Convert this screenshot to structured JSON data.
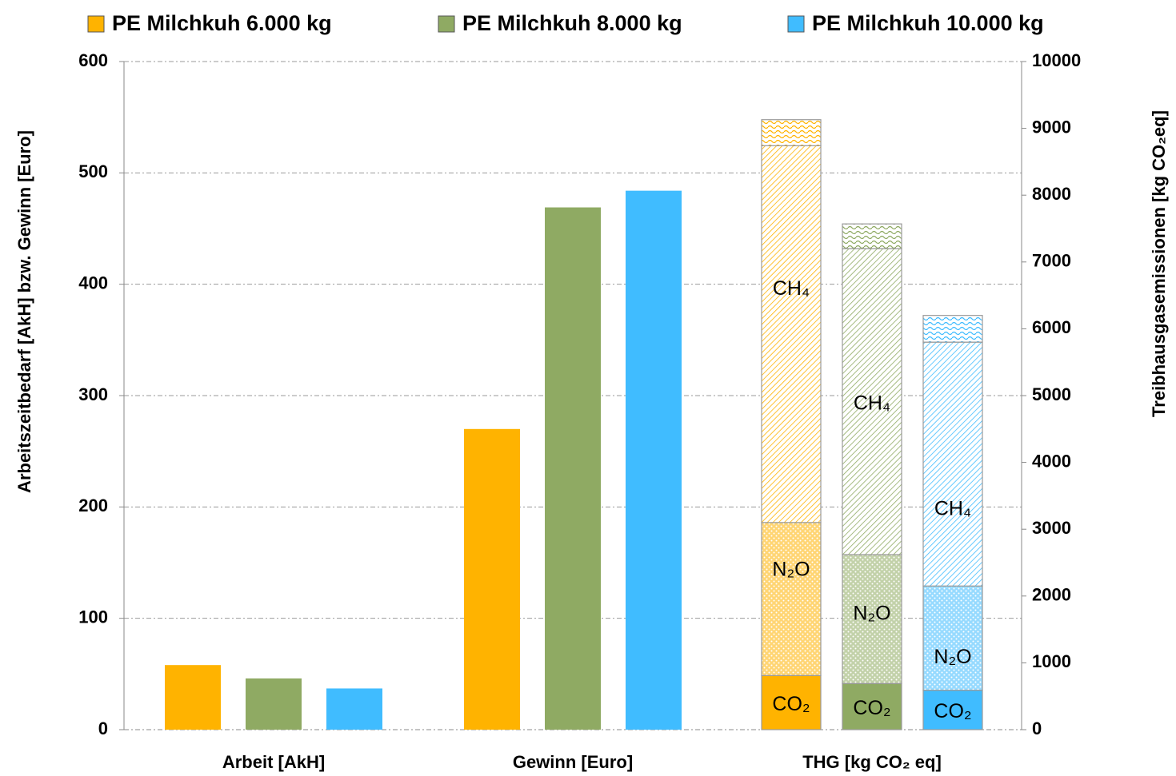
{
  "chart_data": {
    "type": "bar",
    "categories": [
      "Arbeit [AkH]",
      "Gewinn [Euro]",
      "THG [kg CO₂ eq]"
    ],
    "ylabel": "Arbeitszeitbedarf [AkH] bzw. Gewinn [Euro]",
    "y2label": "Treibhausgasemissionen [kg CO₂eq]",
    "ylim": [
      0,
      600
    ],
    "yticks": [
      0,
      100,
      200,
      300,
      400,
      500,
      600
    ],
    "y2lim": [
      0,
      10000
    ],
    "y2ticks": [
      0,
      1000,
      2000,
      3000,
      4000,
      5000,
      6000,
      7000,
      8000,
      9000,
      10000
    ],
    "grid": true,
    "legend": "top",
    "series": [
      {
        "name": "PE Milchkuh 6.000 kg",
        "color": "#ffb300",
        "values": [
          58,
          270,
          null
        ],
        "stack": {
          "axis": "y2",
          "segments": [
            {
              "label": "CO₂",
              "value": 810
            },
            {
              "label": "N₂O",
              "value": 2290
            },
            {
              "label": "CH₄",
              "value": 5640
            },
            {
              "value": 390
            }
          ]
        }
      },
      {
        "name": "PE Milchkuh 8.000 kg",
        "color": "#8faa63",
        "values": [
          46,
          469,
          null
        ],
        "stack": {
          "axis": "y2",
          "segments": [
            {
              "label": "CO₂",
              "value": 690
            },
            {
              "label": "N₂O",
              "value": 1930
            },
            {
              "label": "CH₄",
              "value": 4580
            },
            {
              "value": 370
            }
          ]
        }
      },
      {
        "name": "PE Milchkuh 10.000 kg",
        "color": "#40bcff",
        "values": [
          37,
          484,
          null
        ],
        "stack": {
          "axis": "y2",
          "segments": [
            {
              "label": "CO₂",
              "value": 590
            },
            {
              "label": "N₂O",
              "value": 1560
            },
            {
              "label": "CH₄",
              "value": 3650
            },
            {
              "value": 400
            }
          ]
        }
      }
    ]
  }
}
